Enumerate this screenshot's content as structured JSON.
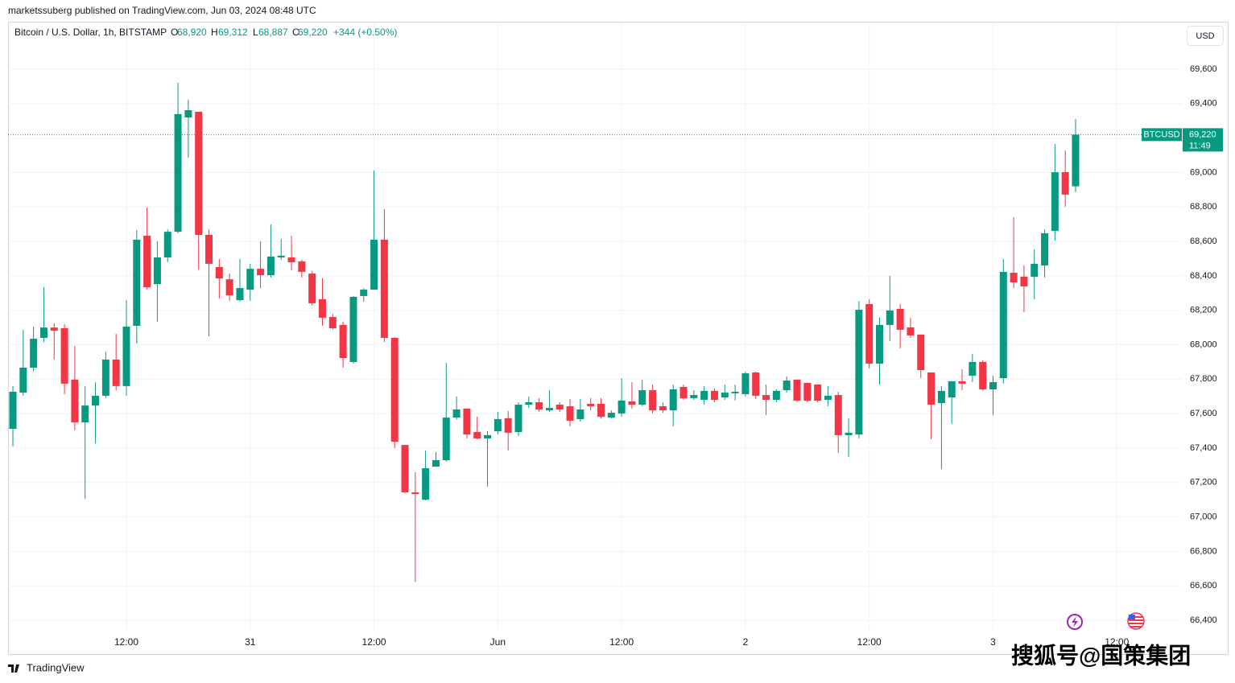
{
  "publisher": "marketssuberg published on TradingView.com, Jun 03, 2024 08:48 UTC",
  "header": {
    "symbol": "Bitcoin / U.S. Dollar, 1h, BITSTAMP",
    "o_label": "O",
    "o": "68,920",
    "h_label": "H",
    "h": "69,312",
    "l_label": "L",
    "l": "68,887",
    "c_label": "C",
    "c": "69,220",
    "change": "+344 (+0.50%)"
  },
  "currency": "USD",
  "price_tag": {
    "symbol": "BTCUSD",
    "price": "69,220",
    "countdown": "11:49"
  },
  "footer": "TradingView",
  "watermark": "搜狐号@国策集团",
  "chart_data": {
    "type": "candlestick",
    "up_color": "#089981",
    "down_color": "#f23645",
    "grid": true,
    "x": [
      1,
      2,
      3,
      4,
      5,
      6,
      7,
      8,
      9,
      10,
      11,
      12,
      13,
      14,
      15,
      16,
      17,
      18,
      19,
      20,
      21,
      22,
      23,
      24,
      25,
      26,
      27,
      28,
      29,
      30,
      31,
      32,
      33,
      34,
      35,
      36,
      37,
      38,
      39,
      40,
      41,
      42,
      43,
      44,
      45,
      46,
      47,
      48,
      49,
      50,
      51,
      52,
      53,
      54,
      55,
      56,
      57,
      58,
      59,
      60,
      61,
      62,
      63,
      64,
      65,
      66,
      67,
      68,
      69,
      70,
      71,
      72,
      73,
      74,
      75,
      76,
      77,
      78,
      79,
      80,
      81,
      82,
      83,
      84,
      85,
      86,
      87,
      88,
      89,
      90,
      91,
      92,
      93,
      94,
      95,
      96,
      97,
      98,
      99,
      100,
      101,
      102,
      103,
      104
    ],
    "open": [
      67512,
      67722,
      67867,
      68040,
      68100,
      68096,
      67797,
      67549,
      67647,
      67704,
      67914,
      67760,
      68110,
      68633,
      68352,
      68507,
      68656,
      69320,
      69353,
      68638,
      68451,
      68380,
      68259,
      68320,
      68441,
      68404,
      68507,
      68507,
      68484,
      68413,
      68264,
      68161,
      68115,
      67900,
      68283,
      68320,
      68610,
      68040,
      67418,
      67143,
      67100,
      67292,
      67330,
      67577,
      67629,
      67493,
      67456,
      67498,
      67573,
      67493,
      67652,
      67666,
      67619,
      67652,
      67643,
      67568,
      67657,
      67657,
      67577,
      67601,
      67671,
      67652,
      67736,
      67643,
      67619,
      67755,
      67690,
      67680,
      67732,
      67694,
      67718,
      67713,
      67839,
      67708,
      67680,
      67736,
      67797,
      67778,
      67769,
      67680,
      67708,
      67475,
      67479,
      68236,
      67890,
      68115,
      68208,
      68101,
      68059,
      67839,
      67661,
      67694,
      67788,
      67820,
      67900,
      67741,
      67806,
      68418,
      68395,
      68395,
      68460,
      68661,
      69002,
      68920
    ],
    "high": [
      67760,
      68087,
      68105,
      68334,
      68124,
      68119,
      67993,
      67760,
      67783,
      67960,
      68063,
      68259,
      68666,
      68797,
      68600,
      68670,
      69521,
      69423,
      69353,
      68670,
      68498,
      68413,
      68498,
      68470,
      68600,
      68699,
      68614,
      68633,
      68493,
      68428,
      68386,
      68180,
      68133,
      68283,
      68329,
      69012,
      68787,
      68044,
      67418,
      67260,
      67386,
      67377,
      67895,
      67699,
      67629,
      67582,
      67498,
      67610,
      67615,
      67666,
      67699,
      67690,
      67736,
      67666,
      67685,
      67685,
      67690,
      67690,
      67619,
      67806,
      67783,
      67797,
      67769,
      67666,
      67769,
      67769,
      67736,
      67760,
      67746,
      67769,
      67769,
      67844,
      67844,
      67769,
      67741,
      67816,
      67797,
      67778,
      67769,
      67760,
      67727,
      67573,
      68255,
      68264,
      68157,
      68400,
      68236,
      68157,
      68059,
      67839,
      67760,
      67788,
      67858,
      67947,
      67909,
      67820,
      68498,
      68741,
      68460,
      68554,
      68670,
      69166,
      69128,
      69312
    ],
    "low": [
      67409,
      67704,
      67844,
      68016,
      67914,
      67713,
      67503,
      67105,
      67428,
      67690,
      67736,
      67704,
      68007,
      68320,
      68133,
      68480,
      68647,
      69086,
      68437,
      68049,
      68269,
      68255,
      68250,
      68255,
      68329,
      68390,
      68493,
      68432,
      68390,
      68227,
      68110,
      68087,
      67867,
      67890,
      68250,
      68320,
      68016,
      67400,
      67138,
      66624,
      67096,
      67292,
      67320,
      67565,
      67456,
      67451,
      67176,
      67480,
      67386,
      67470,
      67633,
      67610,
      67610,
      67610,
      67526,
      67554,
      67620,
      67573,
      67573,
      67582,
      67629,
      67643,
      67601,
      67605,
      67526,
      67680,
      67680,
      67652,
      67666,
      67680,
      67676,
      67700,
      67685,
      67591,
      67666,
      67722,
      67666,
      67666,
      67666,
      67643,
      67372,
      67348,
      67456,
      67862,
      67769,
      68021,
      67979,
      68040,
      67806,
      67451,
      67278,
      67540,
      67736,
      67783,
      67732,
      67591,
      67774,
      68330,
      68189,
      68264,
      68390,
      68605,
      68802,
      68887
    ],
    "close": [
      67727,
      67867,
      68035,
      68100,
      68082,
      67774,
      67549,
      67647,
      67704,
      67914,
      67760,
      68105,
      68610,
      68334,
      68507,
      68656,
      69339,
      69362,
      68638,
      68470,
      68385,
      68287,
      68329,
      68441,
      68404,
      68512,
      68517,
      68479,
      68423,
      68241,
      68157,
      68096,
      67923,
      68278,
      68320,
      68610,
      68040,
      67437,
      67143,
      67133,
      67283,
      67330,
      67577,
      67624,
      67479,
      67456,
      67475,
      67568,
      67489,
      67652,
      67666,
      67624,
      67633,
      67624,
      67559,
      67624,
      67643,
      67582,
      67605,
      67676,
      67652,
      67736,
      67619,
      67619,
      67741,
      67689,
      67708,
      67732,
      67680,
      67722,
      67727,
      67834,
      67704,
      67680,
      67732,
      67792,
      67675,
      67675,
      67675,
      67704,
      67475,
      67489,
      68203,
      67890,
      68115,
      68199,
      68087,
      68054,
      67853,
      67652,
      67732,
      67788,
      67774,
      67900,
      67741,
      67783,
      68423,
      68362,
      68339,
      68470,
      68647,
      69002,
      68872,
      69220
    ],
    "xlim": [
      0.53,
      114.3
    ],
    "xticks": [
      {
        "value": 12,
        "label": "12:00"
      },
      {
        "value": 24,
        "label": "31"
      },
      {
        "value": 36,
        "label": "12:00"
      },
      {
        "value": 48,
        "label": "Jun"
      },
      {
        "value": 60,
        "label": "12:00"
      },
      {
        "value": 72,
        "label": "2"
      },
      {
        "value": 84,
        "label": "12:00"
      },
      {
        "value": 96,
        "label": "3"
      },
      {
        "value": 108,
        "label": "12:00"
      }
    ],
    "ylim": [
      66204,
      69871
    ],
    "yticks": [
      {
        "value": 66400,
        "label": "66,400"
      },
      {
        "value": 66600,
        "label": "66,600"
      },
      {
        "value": 66800,
        "label": "66,800"
      },
      {
        "value": 67000,
        "label": "67,000"
      },
      {
        "value": 67200,
        "label": "67,200"
      },
      {
        "value": 67400,
        "label": "67,400"
      },
      {
        "value": 67600,
        "label": "67,600"
      },
      {
        "value": 67800,
        "label": "67,800"
      },
      {
        "value": 68000,
        "label": "68,000"
      },
      {
        "value": 68200,
        "label": "68,200"
      },
      {
        "value": 68400,
        "label": "68,400"
      },
      {
        "value": 68600,
        "label": "68,600"
      },
      {
        "value": 68800,
        "label": "68,800"
      },
      {
        "value": 69000,
        "label": "69,000"
      },
      {
        "value": 69200,
        "label": "69,200"
      },
      {
        "value": 69400,
        "label": "69,400"
      },
      {
        "value": 69600,
        "label": "69,600"
      }
    ]
  }
}
